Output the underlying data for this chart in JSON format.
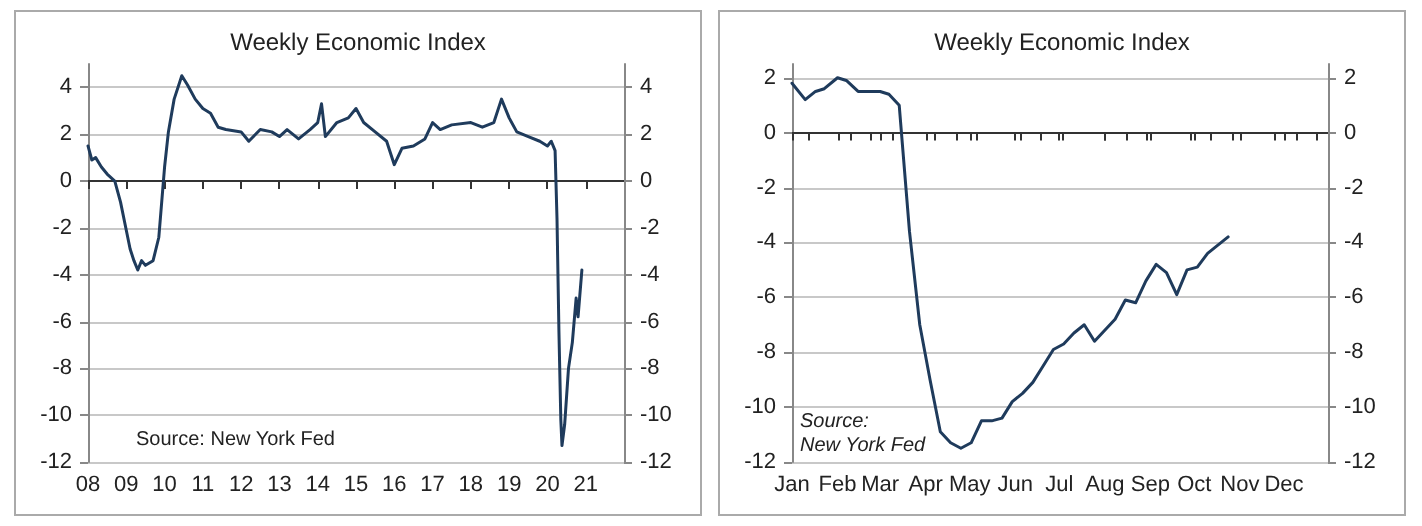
{
  "chart_data": [
    {
      "type": "line",
      "title": "Weekly Economic Index",
      "annotations": [
        "Source: New York Fed"
      ],
      "x": [
        2008.0,
        2008.1,
        2008.2,
        2008.35,
        2008.5,
        2008.7,
        2008.85,
        2009.0,
        2009.1,
        2009.2,
        2009.3,
        2009.4,
        2009.5,
        2009.7,
        2009.85,
        2010.0,
        2010.1,
        2010.25,
        2010.45,
        2010.6,
        2010.8,
        2011.0,
        2011.2,
        2011.4,
        2011.6,
        2012.0,
        2012.2,
        2012.5,
        2012.8,
        2013.0,
        2013.2,
        2013.5,
        2013.8,
        2014.0,
        2014.1,
        2014.2,
        2014.5,
        2014.8,
        2015.0,
        2015.2,
        2015.5,
        2015.8,
        2016.0,
        2016.2,
        2016.5,
        2016.8,
        2017.0,
        2017.2,
        2017.5,
        2018.0,
        2018.3,
        2018.6,
        2018.8,
        2019.0,
        2019.2,
        2019.5,
        2019.8,
        2020.0,
        2020.1,
        2020.2,
        2020.25,
        2020.3,
        2020.35,
        2020.38,
        2020.45,
        2020.55,
        2020.65,
        2020.75,
        2020.8,
        2020.9
      ],
      "series": [
        {
          "color": "#1f3b5c",
          "values": [
            1.5,
            0.9,
            1.0,
            0.6,
            0.3,
            0.0,
            -0.9,
            -2.1,
            -2.9,
            -3.4,
            -3.8,
            -3.4,
            -3.6,
            -3.4,
            -2.4,
            0.6,
            2.1,
            3.5,
            4.5,
            4.1,
            3.5,
            3.1,
            2.9,
            2.3,
            2.2,
            2.1,
            1.7,
            2.2,
            2.1,
            1.9,
            2.2,
            1.8,
            2.2,
            2.5,
            3.3,
            1.9,
            2.5,
            2.7,
            3.1,
            2.5,
            2.1,
            1.7,
            0.7,
            1.4,
            1.5,
            1.8,
            2.5,
            2.2,
            2.4,
            2.5,
            2.3,
            2.5,
            3.5,
            2.7,
            2.1,
            1.9,
            1.7,
            1.5,
            1.7,
            1.3,
            -1.6,
            -6.4,
            -10.2,
            -11.3,
            -10.4,
            -8.0,
            -6.9,
            -5.0,
            -5.8,
            -3.8
          ]
        }
      ],
      "xlim": [
        2008,
        2022
      ],
      "xticks": [
        {
          "value": 2008,
          "label": "08"
        },
        {
          "value": 2009,
          "label": "09"
        },
        {
          "value": 2010,
          "label": "10"
        },
        {
          "value": 2011,
          "label": "11"
        },
        {
          "value": 2012,
          "label": "12"
        },
        {
          "value": 2013,
          "label": "13"
        },
        {
          "value": 2014,
          "label": "14"
        },
        {
          "value": 2015,
          "label": "15"
        },
        {
          "value": 2016,
          "label": "16"
        },
        {
          "value": 2017,
          "label": "17"
        },
        {
          "value": 2018,
          "label": "18"
        },
        {
          "value": 2019,
          "label": "19"
        },
        {
          "value": 2020,
          "label": "20"
        },
        {
          "value": 2021,
          "label": "21"
        }
      ],
      "ylim": [
        -12,
        5
      ],
      "yticks": [
        -12,
        -10,
        -8,
        -6,
        -4,
        -2,
        0,
        2,
        4
      ],
      "y2lim": [
        -12,
        5
      ],
      "y2ticks": [
        -12,
        -10,
        -8,
        -6,
        -4,
        -2,
        0,
        2,
        4
      ],
      "grid": "y"
    },
    {
      "type": "line",
      "title": "Weekly Economic Index",
      "annotations": [
        "Source:\nNew York Fed"
      ],
      "x": [
        "--01-01",
        "--01-10",
        "--01-17",
        "--01-23",
        "--02-01",
        "--02-07",
        "--02-15",
        "--02-23",
        "--03-01",
        "--03-07",
        "--03-14",
        "--03-21",
        "--03-28",
        "--04-04",
        "--04-11",
        "--04-18",
        "--04-25",
        "--05-02",
        "--05-09",
        "--05-16",
        "--05-23",
        "--05-30",
        "--06-06",
        "--06-13",
        "--06-20",
        "--06-27",
        "--07-04",
        "--07-11",
        "--07-18",
        "--07-25",
        "--08-01",
        "--08-08",
        "--08-15",
        "--08-22",
        "--08-29",
        "--09-05",
        "--09-12",
        "--09-19",
        "--09-26",
        "--10-03",
        "--10-10",
        "--10-17",
        "--10-24"
      ],
      "series": [
        {
          "color": "#1f3b5c",
          "values": [
            1.8,
            1.2,
            1.5,
            1.6,
            2.0,
            1.9,
            1.5,
            1.5,
            1.5,
            1.4,
            1.0,
            -3.6,
            -7.0,
            -9.0,
            -10.9,
            -11.3,
            -11.5,
            -11.3,
            -10.5,
            -10.5,
            -10.4,
            -9.8,
            -9.5,
            -9.1,
            -8.5,
            -7.9,
            -7.7,
            -7.3,
            -7.0,
            -7.6,
            -7.2,
            -6.8,
            -6.1,
            -6.2,
            -5.4,
            -4.8,
            -5.1,
            -5.9,
            -5.0,
            -4.9,
            -4.4,
            -4.1,
            -3.8
          ]
        }
      ],
      "xlim": [
        "--01-01",
        "--12-31"
      ],
      "xticks": [
        {
          "value": "--01-01",
          "label": "Jan"
        },
        {
          "value": "--02-01",
          "label": "Feb"
        },
        {
          "value": "--03-01",
          "label": "Mar"
        },
        {
          "value": "--04-01",
          "label": "Apr"
        },
        {
          "value": "--05-01",
          "label": "May"
        },
        {
          "value": "--06-01",
          "label": "Jun"
        },
        {
          "value": "--07-01",
          "label": "Jul"
        },
        {
          "value": "--08-01",
          "label": "Aug"
        },
        {
          "value": "--09-01",
          "label": "Sep"
        },
        {
          "value": "--10-01",
          "label": "Oct"
        },
        {
          "value": "--11-01",
          "label": "Nov"
        },
        {
          "value": "--12-01",
          "label": "Dec"
        }
      ],
      "ylim": [
        -12,
        2.5
      ],
      "yticks": [
        -12,
        -10,
        -8,
        -6,
        -4,
        -2,
        0,
        2
      ],
      "y2lim": [
        -12,
        2.5
      ],
      "y2ticks": [
        -12,
        -10,
        -8,
        -6,
        -4,
        -2,
        0,
        2
      ],
      "grid": "y"
    }
  ]
}
